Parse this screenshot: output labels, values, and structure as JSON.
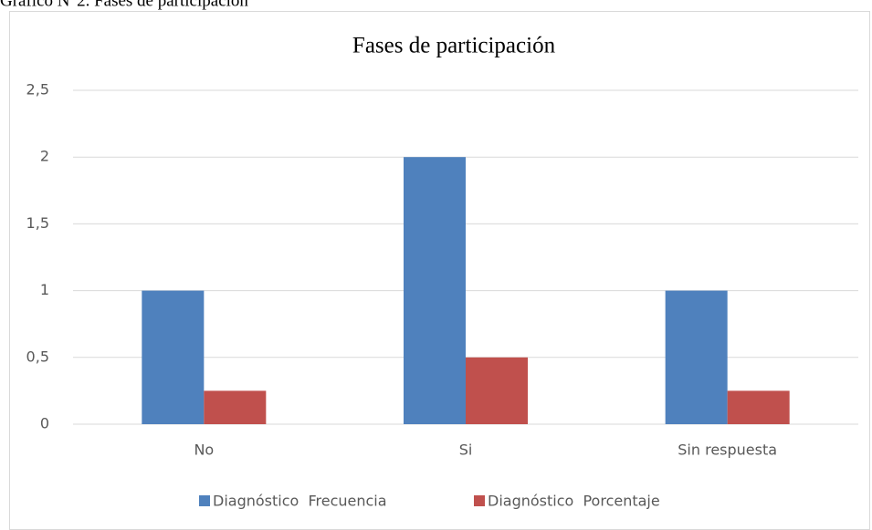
{
  "caption": "Gráfico N°2. Fases de participación",
  "chart_data": {
    "type": "bar",
    "title": "Fases de participación",
    "categories": [
      "No",
      "Si",
      "Sin respuesta"
    ],
    "series": [
      {
        "name": "Diagnóstico  Frecuencia",
        "color": "#4f81bd",
        "values": [
          1,
          2,
          1
        ]
      },
      {
        "name": "Diagnóstico  Porcentaje",
        "color": "#c0504d",
        "values": [
          0.25,
          0.5,
          0.25
        ]
      }
    ],
    "ylim": [
      0,
      2.5
    ],
    "yticks": [
      0,
      {
        "value": 0.5,
        "label": "0,5"
      },
      1,
      {
        "value": 1.5,
        "label": "1,5"
      },
      2,
      {
        "value": 2.5,
        "label": "2,5"
      }
    ],
    "grid": true,
    "legend": "bottom"
  }
}
